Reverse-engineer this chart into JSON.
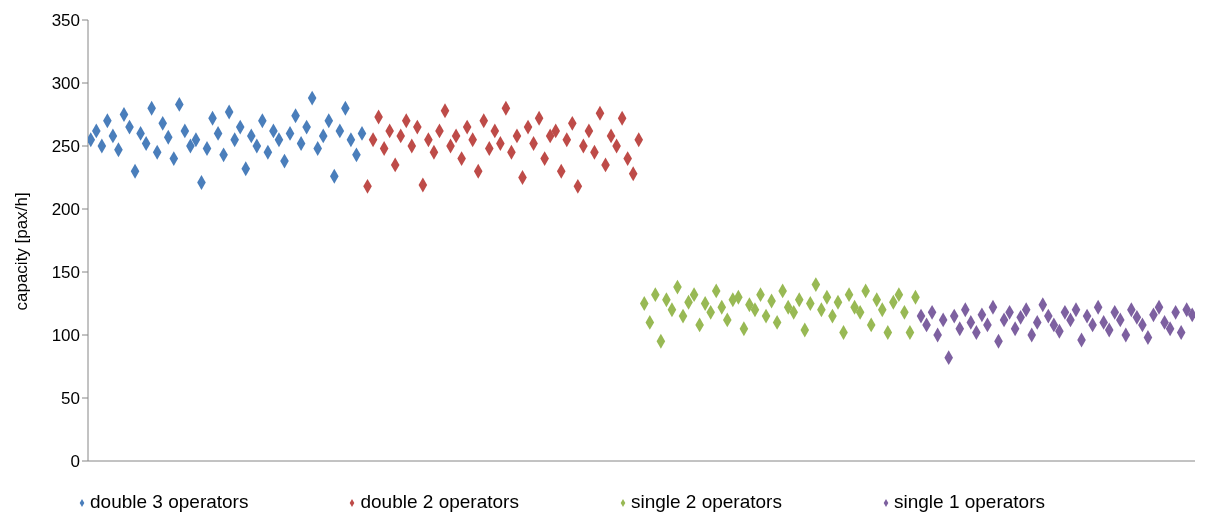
{
  "chart_data": {
    "type": "scatter",
    "ylabel": "capacity [pax/h]",
    "ylim": [
      0,
      350
    ],
    "categories": [
      null,
      null,
      null,
      null,
      null,
      null,
      null,
      null,
      null,
      null,
      null,
      null,
      null,
      null,
      null,
      null,
      null,
      null,
      null,
      null,
      null,
      null,
      null,
      null,
      null,
      null,
      null,
      null,
      null,
      null,
      null,
      null,
      null,
      null,
      null,
      null,
      null,
      null,
      null,
      null,
      null,
      null,
      null,
      null,
      null,
      null,
      null,
      null,
      null,
      null,
      null,
      null,
      null,
      null,
      null,
      null,
      null,
      null,
      null,
      null,
      null,
      null,
      null,
      null,
      null,
      null,
      null,
      null,
      null,
      null,
      null,
      null,
      null,
      null,
      null,
      null,
      null,
      null,
      null,
      null,
      null,
      null,
      null,
      null,
      null,
      null,
      null,
      null,
      null,
      null,
      null,
      null,
      null,
      null,
      null,
      null,
      null,
      null,
      null,
      null,
      null,
      null,
      null,
      null,
      null,
      null,
      null,
      null,
      null,
      null,
      null,
      null,
      null,
      null,
      null,
      null,
      null,
      null,
      null,
      null,
      null,
      null,
      null,
      null,
      null,
      null,
      null,
      null,
      null,
      null,
      null,
      null,
      null,
      null,
      null,
      null,
      null,
      null,
      null,
      null,
      null,
      null,
      null,
      null,
      null,
      null,
      null,
      null,
      null,
      null,
      null,
      null,
      null,
      null,
      null,
      null,
      null,
      null,
      null,
      null,
      null,
      null,
      null,
      null,
      null,
      null,
      null,
      null,
      null,
      null,
      null,
      null,
      null,
      null,
      null,
      null,
      null,
      null,
      null,
      null,
      null,
      null,
      null,
      null,
      null,
      null,
      null,
      null,
      null,
      null,
      null,
      null,
      null,
      null,
      null,
      null,
      null,
      null,
      null,
      null
    ],
    "yticks": [
      0,
      50,
      100,
      150,
      200,
      250,
      300,
      350
    ],
    "legend": "bottom",
    "marker": "diamond",
    "series": [
      {
        "name": "double 3 operators",
        "color": "#4a7ebb",
        "values": [
          255,
          262,
          250,
          270,
          258,
          247,
          275,
          265,
          230,
          260,
          252,
          280,
          245,
          268,
          257,
          240,
          283,
          262,
          250,
          255,
          221,
          248,
          272,
          260,
          243,
          277,
          255,
          265,
          232,
          258,
          250,
          270,
          245,
          262,
          255,
          238,
          260,
          274,
          252,
          265,
          288,
          248,
          258,
          270,
          226,
          262,
          280,
          255,
          243,
          260,
          null,
          null,
          null,
          null,
          null,
          null,
          null,
          null,
          null,
          null,
          null,
          null,
          null,
          null,
          null,
          null,
          null,
          null,
          null,
          null,
          null,
          null,
          null,
          null,
          null,
          null,
          null,
          null,
          null,
          null,
          null,
          null,
          null,
          null,
          null,
          null,
          null,
          null,
          null,
          null,
          null,
          null,
          null,
          null,
          null,
          null,
          null,
          null,
          null,
          null,
          null,
          null,
          null,
          null,
          null,
          null,
          null,
          null,
          null,
          null,
          null,
          null,
          null,
          null,
          null,
          null,
          null,
          null,
          null,
          null,
          null,
          null,
          null,
          null,
          null,
          null,
          null,
          null,
          null,
          null,
          null,
          null,
          null,
          null,
          null,
          null,
          null,
          null,
          null,
          null,
          null,
          null,
          null,
          null,
          null,
          null,
          null,
          null,
          null,
          null,
          null,
          null,
          null,
          null,
          null,
          null,
          null,
          null,
          null,
          null,
          null,
          null,
          null,
          null,
          null,
          null,
          null,
          null,
          null,
          null,
          null,
          null,
          null,
          null,
          null,
          null,
          null,
          null,
          null,
          null,
          null,
          null,
          null,
          null,
          null,
          null,
          null,
          null,
          null,
          null,
          null,
          null,
          null,
          null,
          null,
          null,
          null,
          null,
          null,
          null
        ]
      },
      {
        "name": "double 2 operators",
        "color": "#be4b48",
        "values": [
          null,
          null,
          null,
          null,
          null,
          null,
          null,
          null,
          null,
          null,
          null,
          null,
          null,
          null,
          null,
          null,
          null,
          null,
          null,
          null,
          null,
          null,
          null,
          null,
          null,
          null,
          null,
          null,
          null,
          null,
          null,
          null,
          null,
          null,
          null,
          null,
          null,
          null,
          null,
          null,
          null,
          null,
          null,
          null,
          null,
          null,
          null,
          null,
          null,
          null,
          218,
          255,
          273,
          248,
          262,
          235,
          258,
          270,
          250,
          265,
          219,
          255,
          245,
          262,
          278,
          250,
          258,
          240,
          265,
          255,
          230,
          270,
          248,
          262,
          252,
          280,
          245,
          258,
          225,
          265,
          252,
          272,
          240,
          258,
          262,
          230,
          255,
          268,
          218,
          250,
          262,
          245,
          276,
          235,
          258,
          250,
          272,
          240,
          228,
          255,
          null,
          null,
          null,
          null,
          null,
          null,
          null,
          null,
          null,
          null,
          null,
          null,
          null,
          null,
          null,
          null,
          null,
          null,
          null,
          null,
          null,
          null,
          null,
          null,
          null,
          null,
          null,
          null,
          null,
          null,
          null,
          null,
          null,
          null,
          null,
          null,
          null,
          null,
          null,
          null,
          null,
          null,
          null,
          null,
          null,
          null,
          null,
          null,
          null,
          null,
          null,
          null,
          null,
          null,
          null,
          null,
          null,
          null,
          null,
          null,
          null,
          null,
          null,
          null,
          null,
          null,
          null,
          null,
          null,
          null,
          null,
          null,
          null,
          null,
          null,
          null,
          null,
          null,
          null,
          null,
          null,
          null,
          null,
          null,
          null,
          null,
          null,
          null,
          null,
          null,
          null,
          null,
          null,
          null,
          null,
          null,
          null,
          null,
          null,
          null
        ]
      },
      {
        "name": "single 2 operators",
        "color": "#98b954",
        "values": [
          null,
          null,
          null,
          null,
          null,
          null,
          null,
          null,
          null,
          null,
          null,
          null,
          null,
          null,
          null,
          null,
          null,
          null,
          null,
          null,
          null,
          null,
          null,
          null,
          null,
          null,
          null,
          null,
          null,
          null,
          null,
          null,
          null,
          null,
          null,
          null,
          null,
          null,
          null,
          null,
          null,
          null,
          null,
          null,
          null,
          null,
          null,
          null,
          null,
          null,
          null,
          null,
          null,
          null,
          null,
          null,
          null,
          null,
          null,
          null,
          null,
          null,
          null,
          null,
          null,
          null,
          null,
          null,
          null,
          null,
          null,
          null,
          null,
          null,
          null,
          null,
          null,
          null,
          null,
          null,
          null,
          null,
          null,
          null,
          null,
          null,
          null,
          null,
          null,
          null,
          null,
          null,
          null,
          null,
          null,
          null,
          null,
          null,
          null,
          null,
          125,
          110,
          132,
          95,
          128,
          120,
          138,
          115,
          126,
          132,
          108,
          125,
          118,
          135,
          122,
          112,
          128,
          130,
          105,
          124,
          120,
          132,
          115,
          127,
          110,
          135,
          122,
          118,
          128,
          104,
          125,
          140,
          120,
          130,
          115,
          126,
          102,
          132,
          122,
          118,
          135,
          108,
          128,
          120,
          102,
          126,
          132,
          118,
          102,
          130,
          null,
          null,
          null,
          null,
          null,
          null,
          null,
          null,
          null,
          null,
          null,
          null,
          null,
          null,
          null,
          null,
          null,
          null,
          null,
          null,
          null,
          null,
          null,
          null,
          null,
          null,
          null,
          null,
          null,
          null,
          null,
          null,
          null,
          null,
          null,
          null,
          null,
          null,
          null,
          null,
          null,
          null,
          null,
          null,
          null,
          null,
          null,
          null,
          null,
          null
        ]
      },
      {
        "name": "single 1 operators",
        "color": "#7d60a0",
        "values": [
          null,
          null,
          null,
          null,
          null,
          null,
          null,
          null,
          null,
          null,
          null,
          null,
          null,
          null,
          null,
          null,
          null,
          null,
          null,
          null,
          null,
          null,
          null,
          null,
          null,
          null,
          null,
          null,
          null,
          null,
          null,
          null,
          null,
          null,
          null,
          null,
          null,
          null,
          null,
          null,
          null,
          null,
          null,
          null,
          null,
          null,
          null,
          null,
          null,
          null,
          null,
          null,
          null,
          null,
          null,
          null,
          null,
          null,
          null,
          null,
          null,
          null,
          null,
          null,
          null,
          null,
          null,
          null,
          null,
          null,
          null,
          null,
          null,
          null,
          null,
          null,
          null,
          null,
          null,
          null,
          null,
          null,
          null,
          null,
          null,
          null,
          null,
          null,
          null,
          null,
          null,
          null,
          null,
          null,
          null,
          null,
          null,
          null,
          null,
          null,
          null,
          null,
          null,
          null,
          null,
          null,
          null,
          null,
          null,
          null,
          null,
          null,
          null,
          null,
          null,
          null,
          null,
          null,
          null,
          null,
          null,
          null,
          null,
          null,
          null,
          null,
          null,
          null,
          null,
          null,
          null,
          null,
          null,
          null,
          null,
          null,
          null,
          null,
          null,
          null,
          null,
          null,
          null,
          null,
          null,
          null,
          null,
          null,
          null,
          null,
          115,
          108,
          118,
          100,
          112,
          82,
          115,
          105,
          120,
          110,
          102,
          116,
          108,
          122,
          95,
          112,
          118,
          105,
          114,
          120,
          100,
          110,
          124,
          115,
          108,
          103,
          118,
          112,
          120,
          96,
          115,
          108,
          122,
          110,
          104,
          118,
          112,
          100,
          120,
          114,
          108,
          98,
          116,
          122,
          110,
          105,
          118,
          102,
          120,
          116
        ]
      }
    ]
  }
}
